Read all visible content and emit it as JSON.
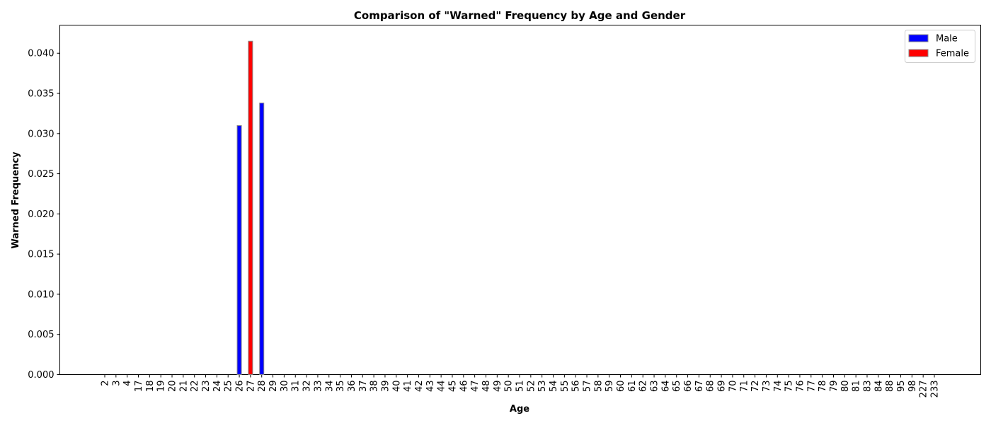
{
  "chart_data": {
    "type": "bar",
    "title": "Comparison of \"Warned\" Frequency by Age and Gender",
    "xlabel": "Age",
    "ylabel": "Warned Frequency",
    "ylim": [
      0,
      0.0435
    ],
    "yticks": [
      "0.000",
      "0.005",
      "0.010",
      "0.015",
      "0.020",
      "0.025",
      "0.030",
      "0.035",
      "0.040"
    ],
    "categories": [
      "2",
      "3",
      "4",
      "17",
      "18",
      "19",
      "20",
      "21",
      "22",
      "23",
      "24",
      "25",
      "26",
      "27",
      "28",
      "29",
      "30",
      "31",
      "32",
      "33",
      "34",
      "35",
      "36",
      "37",
      "38",
      "39",
      "40",
      "41",
      "42",
      "43",
      "44",
      "45",
      "46",
      "47",
      "48",
      "49",
      "50",
      "51",
      "52",
      "53",
      "54",
      "55",
      "56",
      "57",
      "58",
      "59",
      "60",
      "61",
      "62",
      "63",
      "64",
      "65",
      "66",
      "67",
      "68",
      "69",
      "70",
      "71",
      "72",
      "73",
      "74",
      "75",
      "76",
      "77",
      "78",
      "79",
      "80",
      "81",
      "83",
      "84",
      "88",
      "95",
      "98",
      "227",
      "233"
    ],
    "series": [
      {
        "name": "Male",
        "color": "#0000ff",
        "points": [
          [
            "26",
            0.031
          ],
          [
            "28",
            0.0338
          ]
        ]
      },
      {
        "name": "Female",
        "color": "#ff0000",
        "points": [
          [
            "27",
            0.0415
          ]
        ]
      }
    ],
    "legend_position": "top-right",
    "grid": false
  }
}
